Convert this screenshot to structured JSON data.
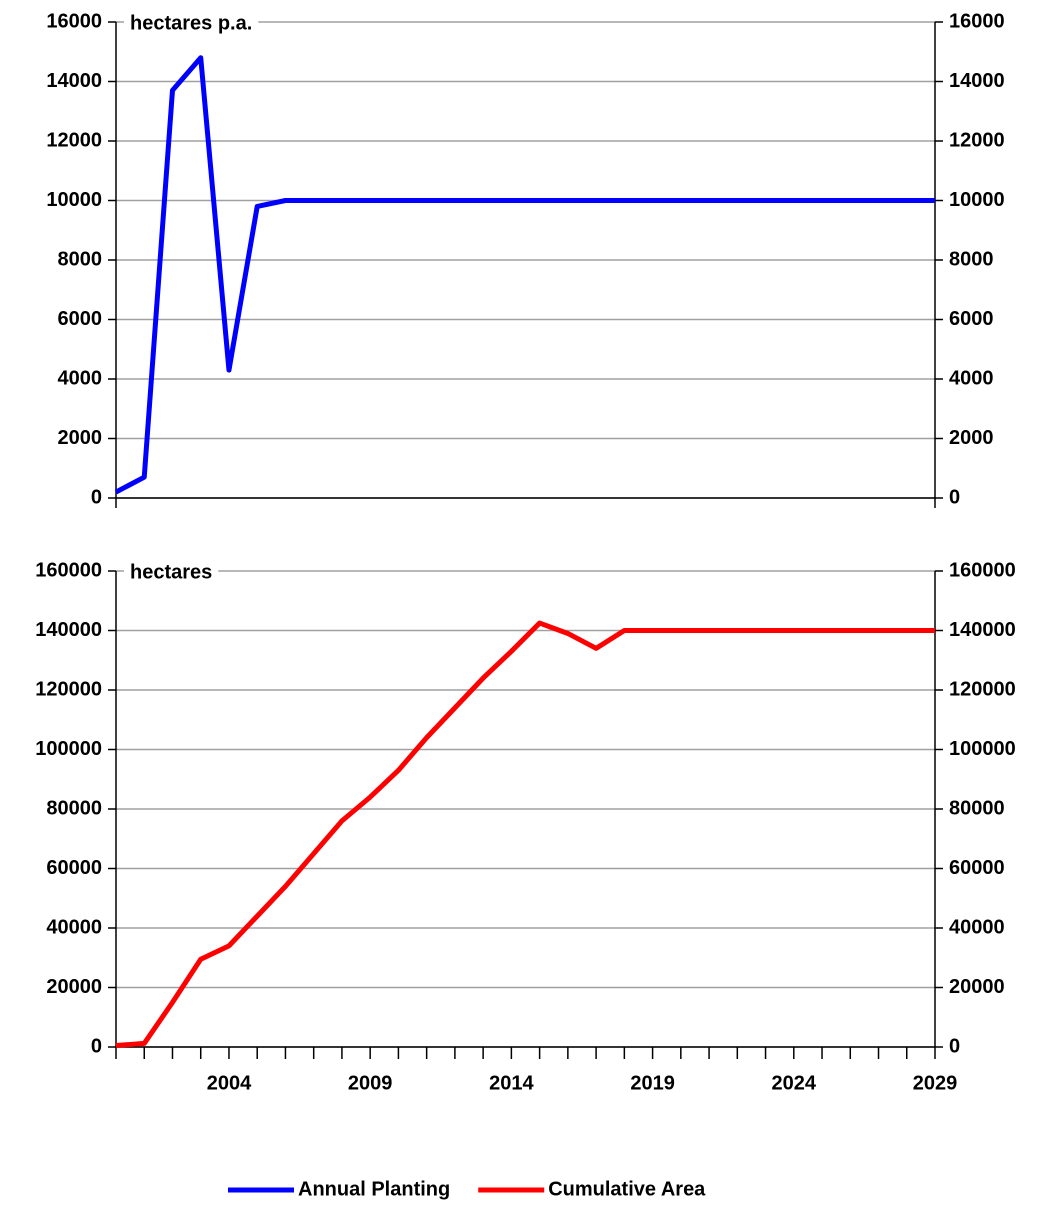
{
  "chart_data": [
    {
      "type": "line",
      "annotation": "hectares p.a.",
      "x": [
        2000,
        2001,
        2002,
        2003,
        2004,
        2005,
        2006,
        2007,
        2008,
        2009,
        2010,
        2011,
        2012,
        2013,
        2014,
        2015,
        2016,
        2017,
        2018,
        2019,
        2020,
        2021,
        2022,
        2023,
        2024,
        2025,
        2026,
        2027,
        2028,
        2029
      ],
      "series": [
        {
          "name": "Annual Planting",
          "color": "#0000ff",
          "values": [
            200,
            700,
            13700,
            14800,
            4300,
            9800,
            10000,
            10000,
            10000,
            10000,
            10000,
            10000,
            10000,
            10000,
            10000,
            10000,
            10000,
            10000,
            10000,
            10000,
            10000,
            10000,
            10000,
            10000,
            10000,
            10000,
            10000,
            10000,
            10000,
            10000
          ]
        }
      ],
      "xlim": [
        2000,
        2029
      ],
      "ylim": [
        0,
        16000
      ],
      "yticks": [
        0,
        2000,
        4000,
        6000,
        8000,
        10000,
        12000,
        14000,
        16000
      ],
      "y2lim": [
        0,
        16000
      ],
      "y2ticks": [
        0,
        2000,
        4000,
        6000,
        8000,
        10000,
        12000,
        14000,
        16000
      ],
      "grid": true
    },
    {
      "type": "line",
      "annotation": "hectares",
      "x": [
        2000,
        2001,
        2002,
        2003,
        2004,
        2005,
        2006,
        2007,
        2008,
        2009,
        2010,
        2011,
        2012,
        2013,
        2014,
        2015,
        2016,
        2017,
        2018,
        2019,
        2020,
        2021,
        2022,
        2023,
        2024,
        2025,
        2026,
        2027,
        2028,
        2029
      ],
      "series": [
        {
          "name": "Cumulative Area",
          "color": "#ff0000",
          "values": [
            500,
            1200,
            15000,
            29500,
            34000,
            44000,
            54000,
            65000,
            76000,
            84000,
            93000,
            104000,
            114000,
            124000,
            133000,
            142500,
            139000,
            134000,
            140000,
            140000,
            140000,
            140000,
            140000,
            140000,
            140000,
            140000,
            140000,
            140000,
            140000,
            140000
          ]
        }
      ],
      "xlim": [
        2000,
        2029
      ],
      "xticks": [
        2004,
        2009,
        2014,
        2019,
        2024,
        2029
      ],
      "ylim": [
        0,
        160000
      ],
      "yticks": [
        0,
        20000,
        40000,
        60000,
        80000,
        100000,
        120000,
        140000,
        160000
      ],
      "y2lim": [
        0,
        160000
      ],
      "y2ticks": [
        0,
        20000,
        40000,
        60000,
        80000,
        100000,
        120000,
        140000,
        160000
      ],
      "grid": true
    }
  ]
}
